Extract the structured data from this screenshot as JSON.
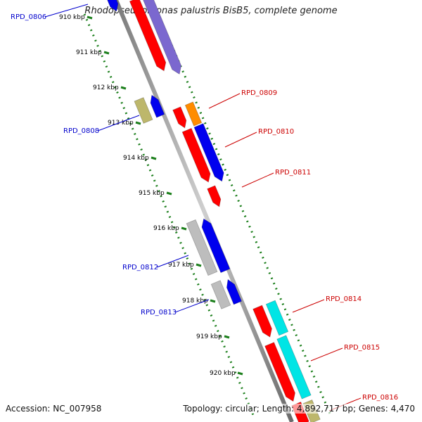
{
  "title": "Rhodopseudomonas palustris BisB5, complete genome",
  "footer": {
    "accession": "Accession: NC_007958",
    "topology": "Topology: circular; Length: 4,892,717 bp; Genes: 4,470"
  },
  "colors": {
    "backbone": "#8c8c8c",
    "tick_green": "#1c7f1c",
    "red": "#ff0000",
    "blue": "#0000ee",
    "purple": "#7b68cf",
    "olive": "#bdb76b",
    "orange": "#ff8c00",
    "cyan": "#00e5e5",
    "gray": "#bdbdbd",
    "label_blue": "#0000cc",
    "label_red": "#cc0000"
  },
  "kbp_ticks": [
    "910 kbp",
    "911 kbp",
    "912 kbp",
    "913 kbp",
    "914 kbp",
    "915 kbp",
    "916 kbp",
    "917 kbp",
    "918 kbp",
    "919 kbp",
    "920 kbp"
  ],
  "gene_labels": [
    {
      "text": "RPD_0806",
      "color": "label_blue"
    },
    {
      "text": "RPD_0808",
      "color": "label_blue"
    },
    {
      "text": "RPD_0809",
      "color": "label_red"
    },
    {
      "text": "RPD_0810",
      "color": "label_red"
    },
    {
      "text": "RPD_0811",
      "color": "label_red"
    },
    {
      "text": "RPD_0812",
      "color": "label_blue"
    },
    {
      "text": "RPD_0813",
      "color": "label_blue"
    },
    {
      "text": "RPD_0814",
      "color": "label_red"
    },
    {
      "text": "RPD_0815",
      "color": "label_red"
    },
    {
      "text": "RPD_0816",
      "color": "label_red"
    }
  ]
}
